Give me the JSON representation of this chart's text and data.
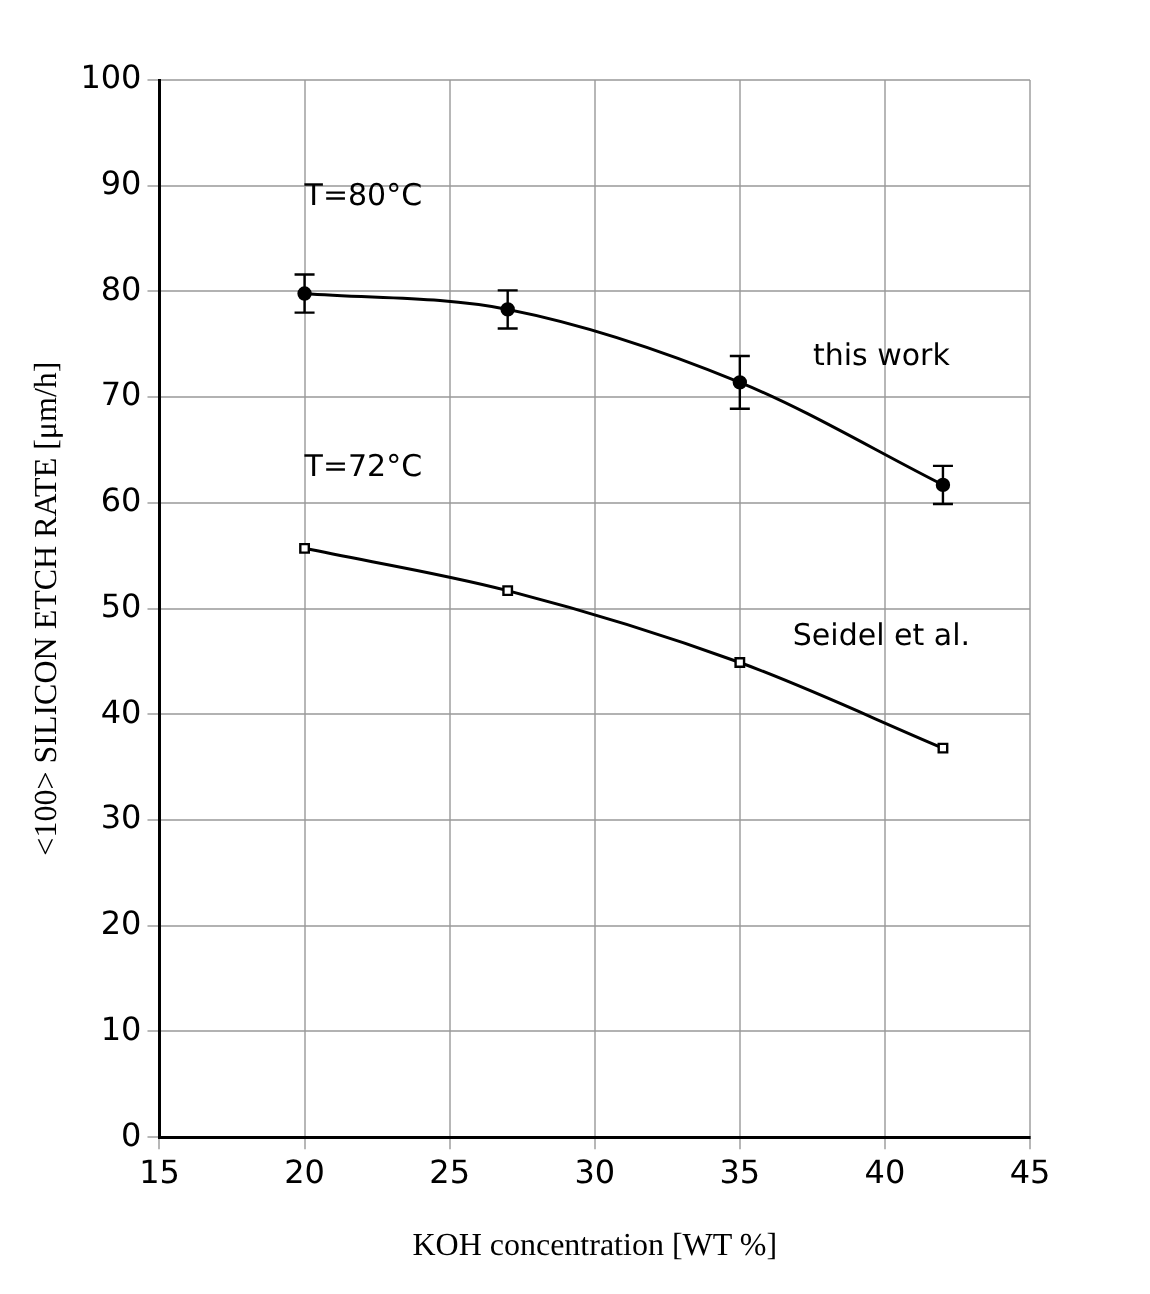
{
  "chart_data": {
    "type": "line",
    "xlabel": "KOH concentration [WT %]",
    "ylabel": "<100> SILICON ETCH RATE [μm/h]",
    "x": [
      20,
      27,
      35,
      42
    ],
    "series": [
      {
        "name": "this work",
        "color": "#000000",
        "values": [
          79.8,
          78.3,
          71.4,
          61.7
        ],
        "errors": [
          1.8,
          1.8,
          2.5,
          1.8
        ],
        "marker": "circle"
      },
      {
        "name": "Seidel et al.",
        "color": "#000000",
        "values": [
          55.7,
          51.7,
          44.9,
          36.8
        ],
        "marker": "square"
      }
    ],
    "annotations": [
      "T=80°C",
      "T=72°C"
    ],
    "xlim": [
      15,
      45
    ],
    "xticks": [
      15,
      20,
      25,
      30,
      35,
      40,
      45
    ],
    "ylim": [
      0,
      100
    ],
    "yticks": [
      0,
      10,
      20,
      30,
      40,
      50,
      60,
      70,
      80,
      90,
      100
    ],
    "grid": true,
    "line_style": "solid",
    "legend": false
  }
}
